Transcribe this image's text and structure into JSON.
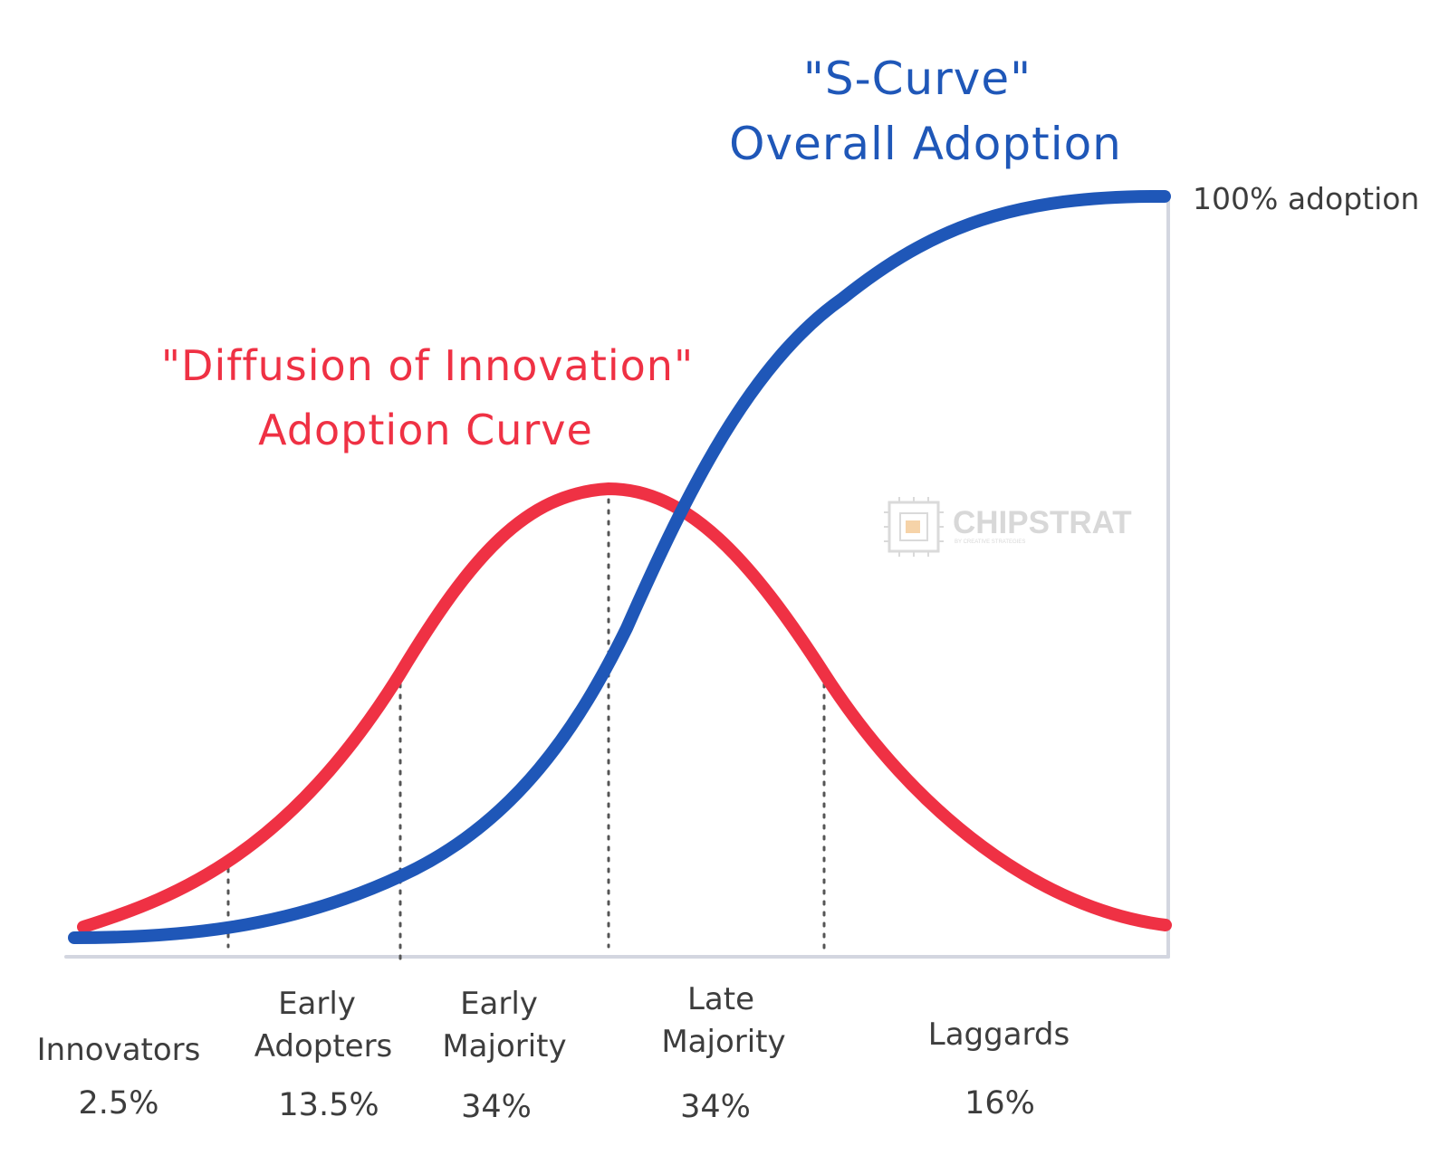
{
  "titles": {
    "s_curve_line1": "\"S-Curve\"",
    "s_curve_line2": "Overall Adoption",
    "diffusion_line1": "\"Diffusion of Innovation\"",
    "diffusion_line2": "Adoption Curve"
  },
  "annotations": {
    "full_adoption": "100% adoption"
  },
  "segments": [
    {
      "line1": "",
      "line2": "Innovators",
      "pct": "2.5%",
      "share": 2.5
    },
    {
      "line1": "Early",
      "line2": "Adopters",
      "pct": "13.5%",
      "share": 13.5
    },
    {
      "line1": "Early",
      "line2": "Majority",
      "pct": "34%",
      "share": 34
    },
    {
      "line1": "Late",
      "line2": "Majority",
      "pct": "34%",
      "share": 34
    },
    {
      "line1": "",
      "line2": "Laggards",
      "pct": "16%",
      "share": 16
    }
  ],
  "watermark": {
    "name": "CHIPSTRAT",
    "tagline": "BY CREATIVE STRATEGIES"
  },
  "colors": {
    "s_curve": "#1f57b8",
    "bell_curve": "#ef3144",
    "axis": "#d3d6e0",
    "divider": "#555555",
    "text": "#3d3d3d",
    "watermark": "#d8d8d8"
  }
}
